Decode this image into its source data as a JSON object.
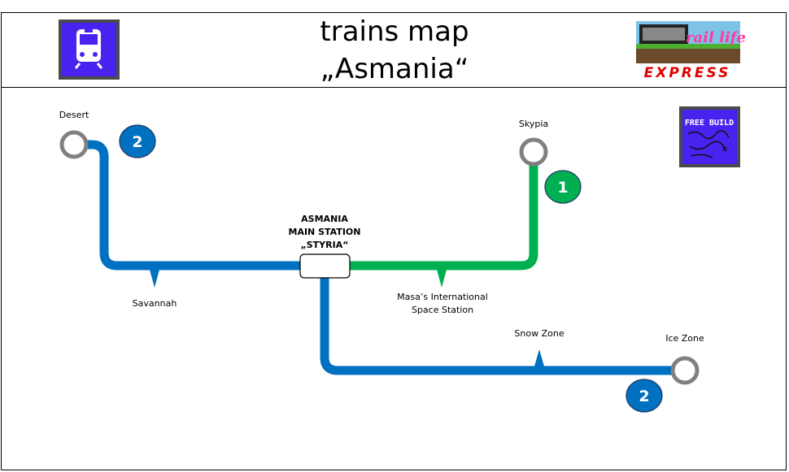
{
  "header": {
    "title_line1": "trains map",
    "title_line2": "„Asmania“",
    "logo_text": "EXPRESS",
    "logo_wordmark": "rail life"
  },
  "free_build_badge": "FREE BUILD",
  "stations": {
    "desert": "Desert",
    "skypia": "Skypia",
    "savannah": "Savannah",
    "masa_line1": "Masa’s International",
    "masa_line2": "Space Station",
    "snow_zone": "Snow Zone",
    "ice_zone": "Ice Zone",
    "main_line1": "ASMANIA",
    "main_line2": "MAIN STATION",
    "main_line3": "„STYRIA“"
  },
  "lines": {
    "line1_number": "1",
    "line2_number_top": "2",
    "line2_number_bottom": "2"
  },
  "colors": {
    "line1": "#00b050",
    "line2": "#0070c0",
    "station_ring": "#808080",
    "badge_blue": "#0070c0",
    "badge_green": "#00b050",
    "train_icon_bg": "#4a22f0"
  }
}
